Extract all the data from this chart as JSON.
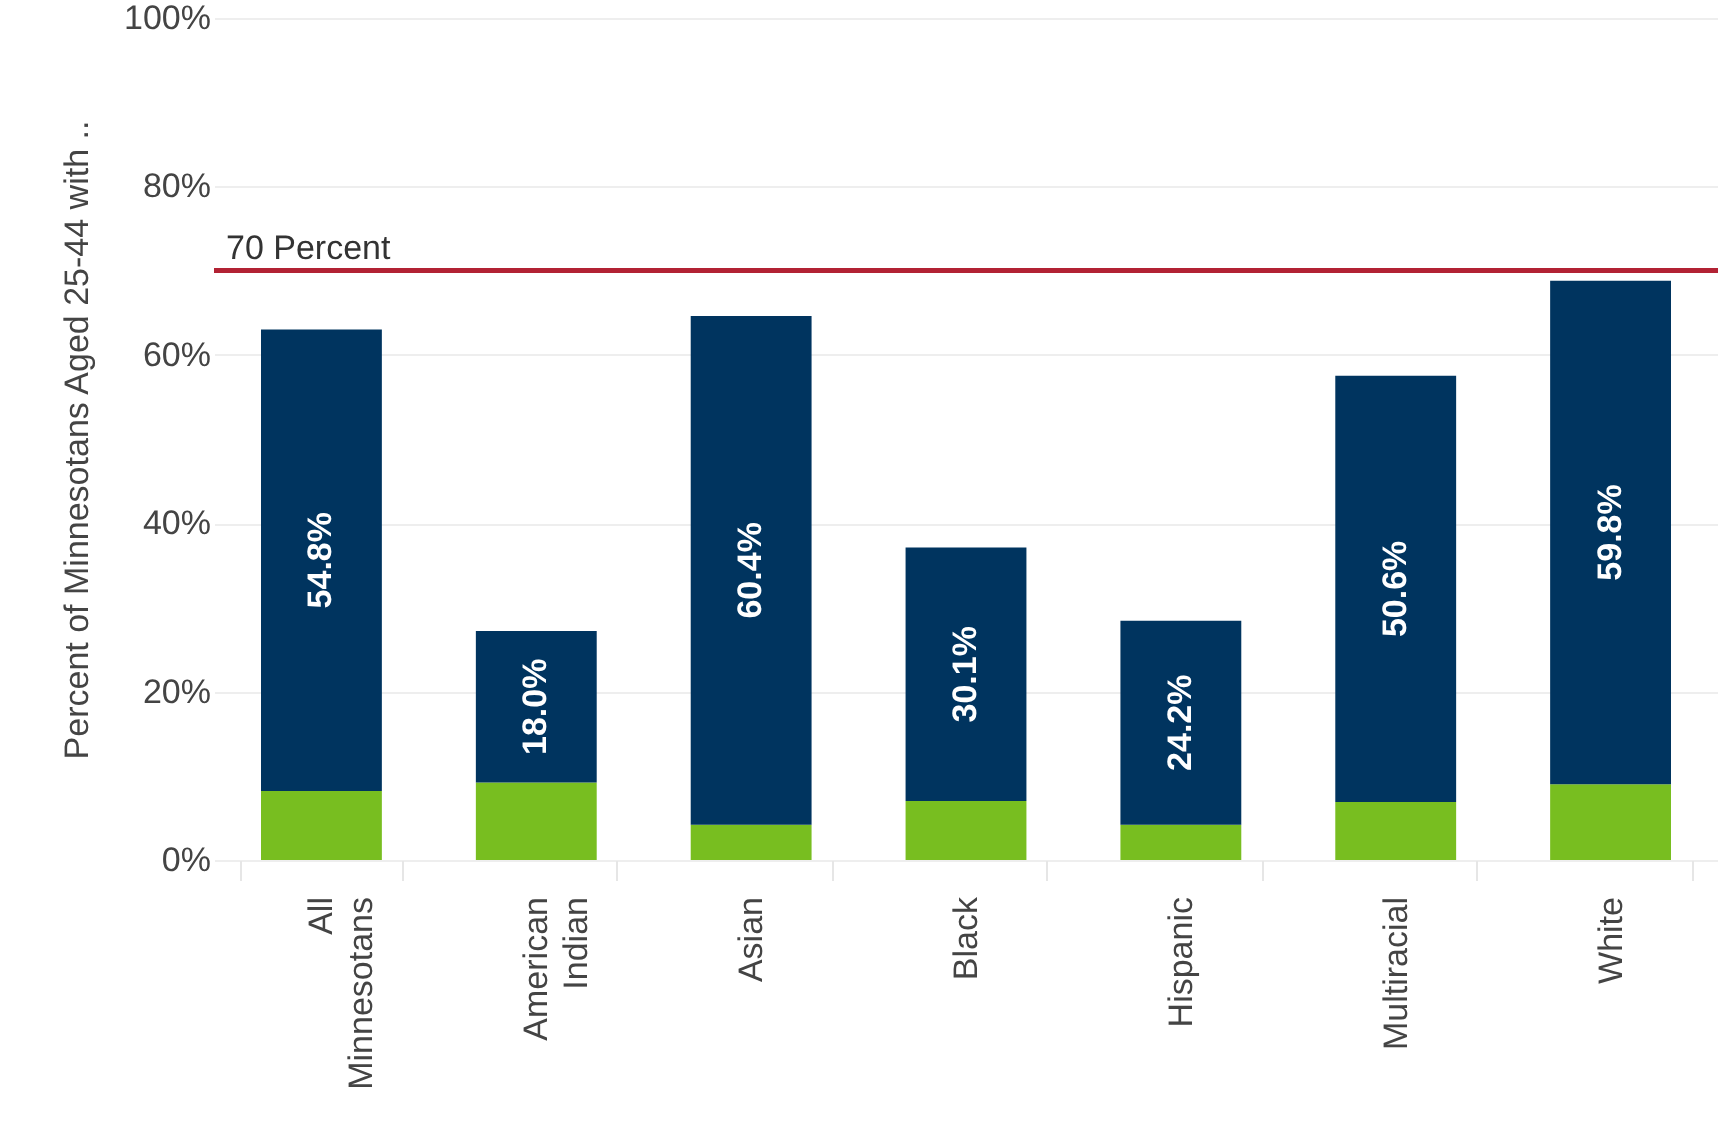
{
  "chart_data": {
    "type": "bar",
    "stacked": true,
    "ylabel": "Percent of Minnesotans Aged 25-44 with ..",
    "categories": [
      "All Minnesotans",
      "American Indian",
      "Asian",
      "Black",
      "Hispanic",
      "Multiracial",
      "White"
    ],
    "series": [
      {
        "color": "#78be20",
        "values": [
          8.2,
          9.2,
          4.2,
          7.0,
          4.2,
          6.9,
          9.0
        ]
      },
      {
        "color": "#00345f",
        "values": [
          54.8,
          18.0,
          60.4,
          30.1,
          24.2,
          50.6,
          59.8
        ],
        "value_labels": [
          "54.8%",
          "18.0%",
          "60.4%",
          "30.1%",
          "24.2%",
          "50.6%",
          "59.8%"
        ]
      }
    ],
    "ylim": [
      0,
      100
    ],
    "yticks": [
      {
        "value": 0,
        "label": "0%"
      },
      {
        "value": 20,
        "label": "20%"
      },
      {
        "value": 40,
        "label": "40%"
      },
      {
        "value": 60,
        "label": "60%"
      },
      {
        "value": 80,
        "label": "80%"
      },
      {
        "value": 100,
        "label": "100%"
      }
    ],
    "ref_lines": [
      {
        "axis": "y",
        "value": 70,
        "label": "70 Percent",
        "color": "#b22234"
      }
    ],
    "grid": "y"
  }
}
